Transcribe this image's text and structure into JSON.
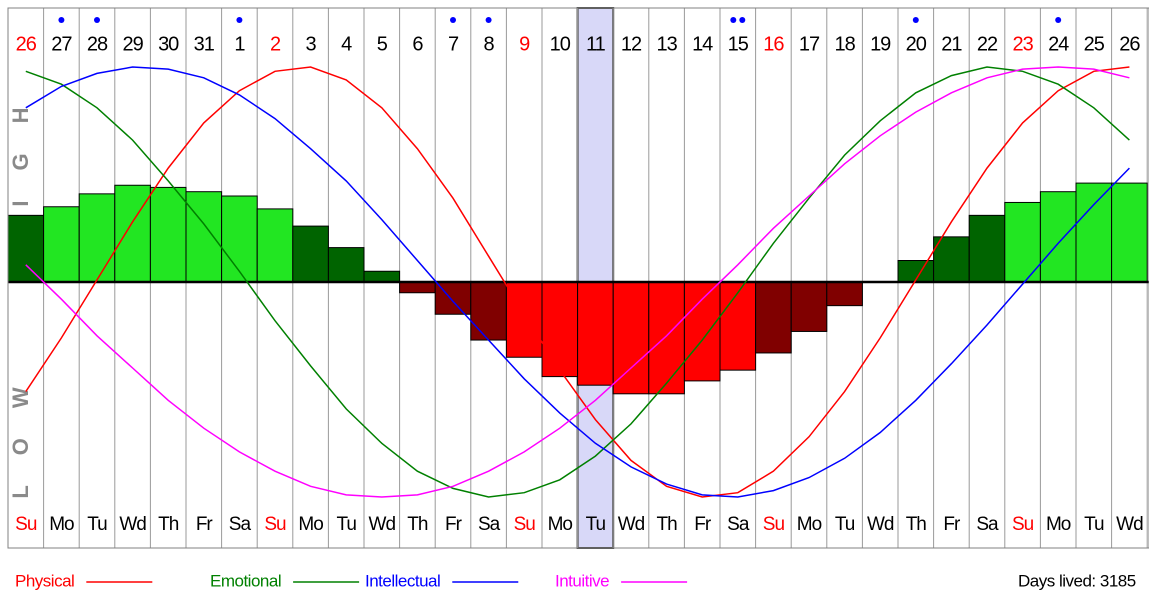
{
  "chart_data": [
    {
      "type": "bar",
      "categories": [
        "26",
        "27",
        "28",
        "29",
        "30",
        "31",
        "1",
        "2",
        "3",
        "4",
        "5",
        "6",
        "7",
        "8",
        "9",
        "10",
        "11",
        "12",
        "13",
        "14",
        "15",
        "16",
        "17",
        "18",
        "19",
        "20",
        "21",
        "22",
        "23",
        "24",
        "25",
        "26"
      ],
      "weekdays": [
        "Su",
        "Mo",
        "Tu",
        "Wd",
        "Th",
        "Fr",
        "Sa",
        "Su",
        "Mo",
        "Tu",
        "Wd",
        "Th",
        "Fr",
        "Sa",
        "Su",
        "Mo",
        "Tu",
        "Wd",
        "Th",
        "Fr",
        "Sa",
        "Su",
        "Mo",
        "Tu",
        "Wd",
        "Th",
        "Fr",
        "Sa",
        "Su",
        "Mo",
        "Tu",
        "Wd"
      ],
      "label_colors": [
        "#ff0000",
        "#000000",
        "#000000",
        "#000000",
        "#000000",
        "#000000",
        "#000000",
        "#ff0000",
        "#000000",
        "#000000",
        "#000000",
        "#000000",
        "#000000",
        "#000000",
        "#ff0000",
        "#000000",
        "#000000",
        "#000000",
        "#000000",
        "#000000",
        "#000000",
        "#ff0000",
        "#000000",
        "#000000",
        "#000000",
        "#000000",
        "#000000",
        "#000000",
        "#ff0000",
        "#000000",
        "#000000",
        "#000000"
      ],
      "dots": [
        0,
        1,
        1,
        0,
        0,
        0,
        1,
        0,
        0,
        0,
        0,
        0,
        1,
        1,
        0,
        0,
        0,
        0,
        0,
        0,
        2,
        0,
        0,
        0,
        0,
        1,
        0,
        0,
        0,
        1,
        0,
        0
      ],
      "dot_color": "#0000ff",
      "selected": 16,
      "values": [
        31,
        35,
        41,
        45,
        44,
        42,
        40,
        34,
        26,
        16,
        5,
        -5,
        -15,
        -27,
        -35,
        -44,
        -48,
        -52,
        -52,
        -46,
        -41,
        -33,
        -23,
        -11,
        0,
        10,
        21,
        31,
        37,
        42,
        46,
        46
      ],
      "colors": [
        "#006400",
        "#22e622",
        "#22e622",
        "#22e622",
        "#22e622",
        "#22e622",
        "#22e622",
        "#22e622",
        "#006400",
        "#006400",
        "#006400",
        "#800000",
        "#800000",
        "#800000",
        "#ff0000",
        "#ff0000",
        "#ff0000",
        "#ff0000",
        "#ff0000",
        "#ff0000",
        "#ff0000",
        "#800000",
        "#800000",
        "#800000",
        "#006400",
        "#006400",
        "#006400",
        "#006400",
        "#22e622",
        "#22e622",
        "#22e622",
        "#22e622"
      ],
      "ylim": [
        -100,
        100
      ],
      "high_label": "HIGH",
      "low_label": "LOW",
      "days_lived": "Days lived: 3185"
    },
    {
      "type": "line",
      "ylim": [
        -100,
        100
      ],
      "series": [
        {
          "name": "Physical",
          "color": "#ff0000",
          "values": [
            -51,
            -26,
            1,
            28,
            53,
            74,
            89,
            98,
            100,
            94,
            81,
            62,
            39,
            12,
            -15,
            -41,
            -64,
            -83,
            -95,
            -100,
            -98,
            -88,
            -72,
            -51,
            -26,
            1,
            28,
            53,
            74,
            89,
            98,
            100
          ]
        },
        {
          "name": "Emotional",
          "color": "#008000",
          "values": [
            98,
            92,
            81,
            66,
            47,
            27,
            5,
            -18,
            -39,
            -59,
            -75,
            -88,
            -96,
            -100,
            -98,
            -92,
            -81,
            -66,
            -47,
            -27,
            -5,
            18,
            39,
            59,
            75,
            88,
            96,
            100,
            98,
            92,
            81,
            66
          ]
        },
        {
          "name": "Intellectual",
          "color": "#0000ff",
          "values": [
            81,
            91,
            97,
            100,
            99,
            95,
            87,
            76,
            62,
            47,
            29,
            10,
            -9,
            -27,
            -45,
            -61,
            -75,
            -86,
            -94,
            -99,
            -100,
            -97,
            -91,
            -82,
            -70,
            -55,
            -38,
            -20,
            -1,
            18,
            36,
            53
          ]
        },
        {
          "name": "Intuitive",
          "color": "#ff00ff",
          "values": [
            8,
            -8,
            -25,
            -40,
            -55,
            -68,
            -79,
            -88,
            -95,
            -99,
            -100,
            -99,
            -95,
            -88,
            -79,
            -68,
            -55,
            -40,
            -25,
            -8,
            8,
            25,
            40,
            55,
            68,
            79,
            88,
            95,
            99,
            100,
            99,
            95
          ]
        }
      ]
    }
  ]
}
